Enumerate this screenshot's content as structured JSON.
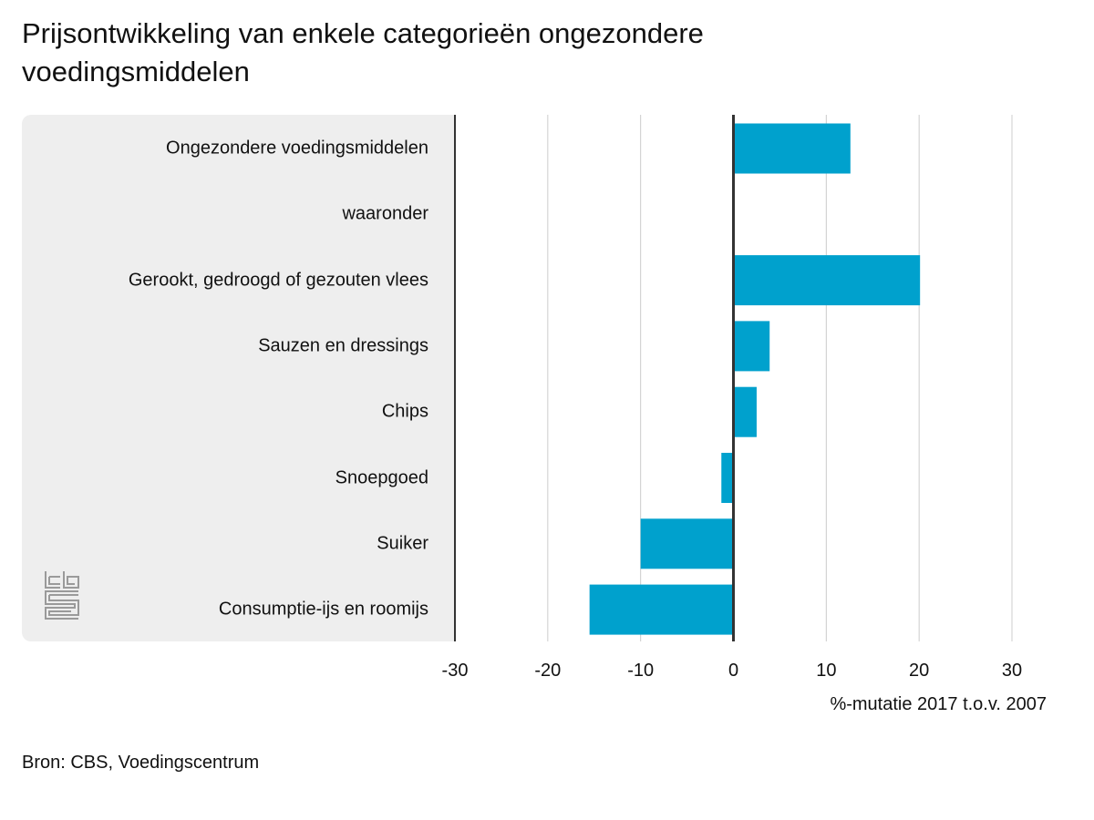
{
  "title": "Prijsontwikkeling van enkele categorieën ongezondere voedingsmiddelen",
  "source": "Bron: CBS, Voedingscentrum",
  "logo_icon": "cbs-logo-icon",
  "colors": {
    "bar": "#00a1cd",
    "panel": "#eeeeee",
    "grid": "#cccccc",
    "axis": "#333333"
  },
  "chart_data": {
    "type": "bar",
    "orientation": "horizontal",
    "categories": [
      "Ongezondere voedingsmiddelen",
      "waaronder",
      "Gerookt, gedroogd of gezouten vlees",
      "Sauzen en dressings",
      "Chips",
      "Snoepgoed",
      "Suiker",
      "Consumptie-ijs en roomijs"
    ],
    "values": [
      12.6,
      null,
      20.1,
      3.9,
      2.5,
      -1.3,
      -10.0,
      -15.5
    ],
    "xlabel": "%-mutatie 2017 t.o.v. 2007",
    "xlim": [
      -30,
      30
    ],
    "xticks": [
      "-30",
      "-20",
      "-10",
      "0",
      "10",
      "20",
      "30"
    ],
    "grid": true
  }
}
